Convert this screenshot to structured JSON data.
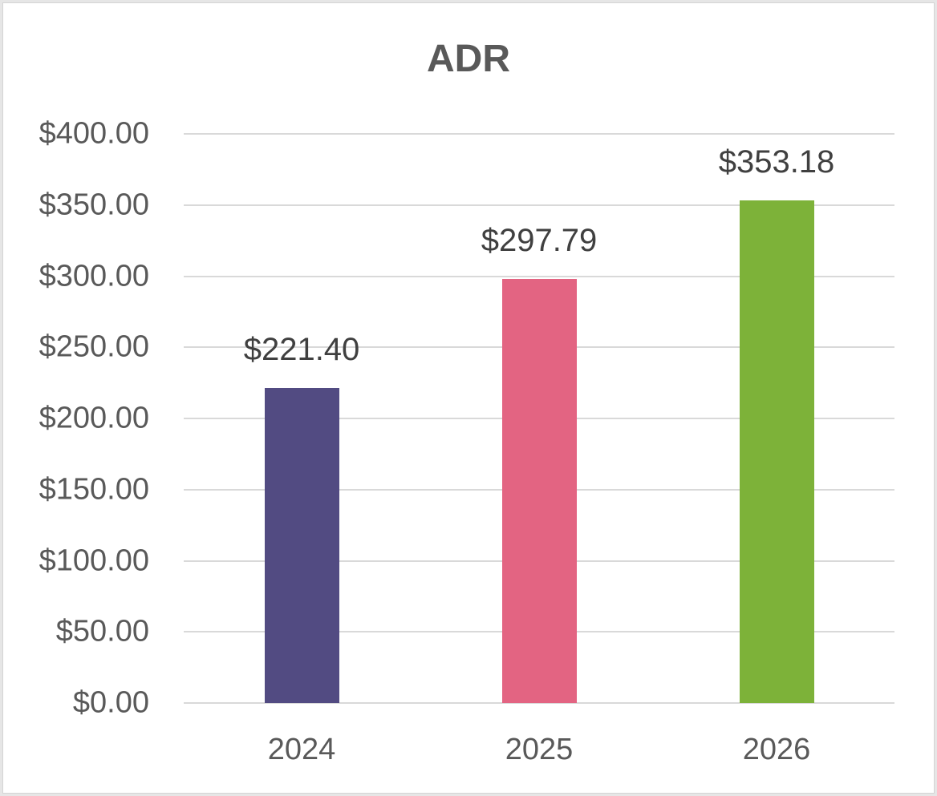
{
  "chart_data": {
    "type": "bar",
    "title": "ADR",
    "categories": [
      "2024",
      "2025",
      "2026"
    ],
    "values": [
      221.4,
      297.79,
      353.18
    ],
    "data_labels": [
      "$221.40",
      "$297.79",
      "$353.18"
    ],
    "colors": [
      "#524b82",
      "#e36482",
      "#7db239"
    ],
    "xlabel": "",
    "ylabel": "",
    "ylim": [
      0,
      400
    ],
    "yticks": [
      0,
      50,
      100,
      150,
      200,
      250,
      300,
      350,
      400
    ],
    "ytick_labels": [
      "$0.00",
      "$50.00",
      "$100.00",
      "$150.00",
      "$200.00",
      "$250.00",
      "$300.00",
      "$350.00",
      "$400.00"
    ],
    "grid": true,
    "legend": "none"
  }
}
